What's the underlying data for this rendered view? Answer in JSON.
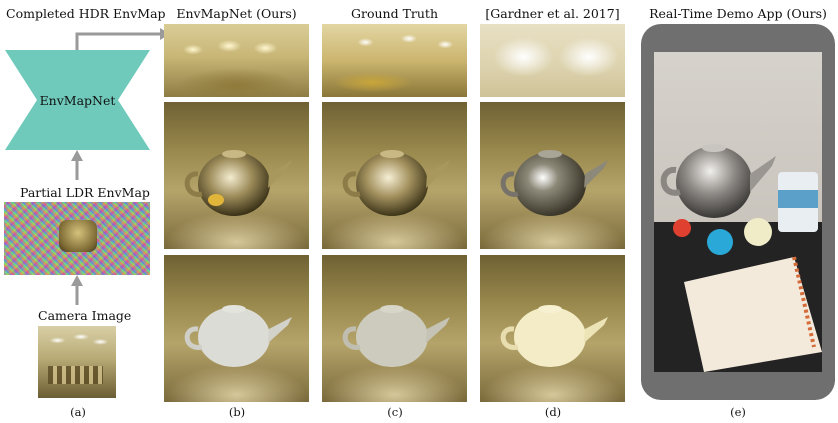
{
  "figure": {
    "left_column": {
      "completed_title": "Completed HDR EnvMap",
      "network_label": "EnvMapNet",
      "partial_label": "Partial LDR EnvMap",
      "camera_label": "Camera Image",
      "caption": "(a)"
    },
    "columns": [
      {
        "title": "EnvMapNet (Ours)",
        "caption": "(b)"
      },
      {
        "title": "Ground Truth",
        "caption": "(c)"
      },
      {
        "title": "[Gardner et al. 2017]",
        "caption": "(d)"
      }
    ],
    "demo": {
      "title": "Real-Time Demo App (Ours)",
      "caption": "(e)"
    },
    "colors": {
      "network": "#6fcabb",
      "arrow": "#9a9a9a",
      "phone_frame": "#6f6f6f"
    }
  }
}
